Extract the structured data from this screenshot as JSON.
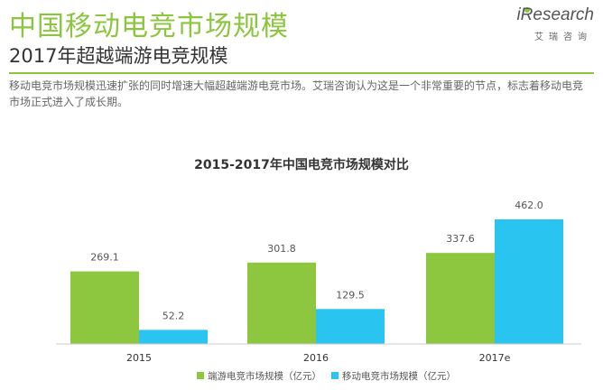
{
  "header": {
    "title": "中国移动电竞市场规模",
    "subtitle": "2017年超越端游电竞规模",
    "logo_text": "iResearch",
    "logo_cn": "艾瑞咨询"
  },
  "description": "移动电竞市场规模迅速扩张的同时增速大幅超越端游电竞市场。艾瑞咨询认为这是一个非常重要的节点，标志着移动电竞市场正式进入了成长期。",
  "chart_data": {
    "type": "bar",
    "title": "2015-2017年中国电竞市场规模对比",
    "categories": [
      "2015",
      "2016",
      "2017e"
    ],
    "series": [
      {
        "name": "端游电竞市场规模（亿元）",
        "values": [
          269.1,
          301.8,
          337.6
        ],
        "color": "#8dc63f"
      },
      {
        "name": "移动电竞市场规模（亿元）",
        "values": [
          52.2,
          129.5,
          462.0
        ],
        "color": "#29c4ef"
      }
    ],
    "value_labels": [
      [
        "269.1",
        "301.8",
        "337.6"
      ],
      [
        "52.2",
        "129.5",
        "462.0"
      ]
    ],
    "ylim": [
      0,
      500
    ],
    "grid": false,
    "legend_position": "bottom"
  }
}
